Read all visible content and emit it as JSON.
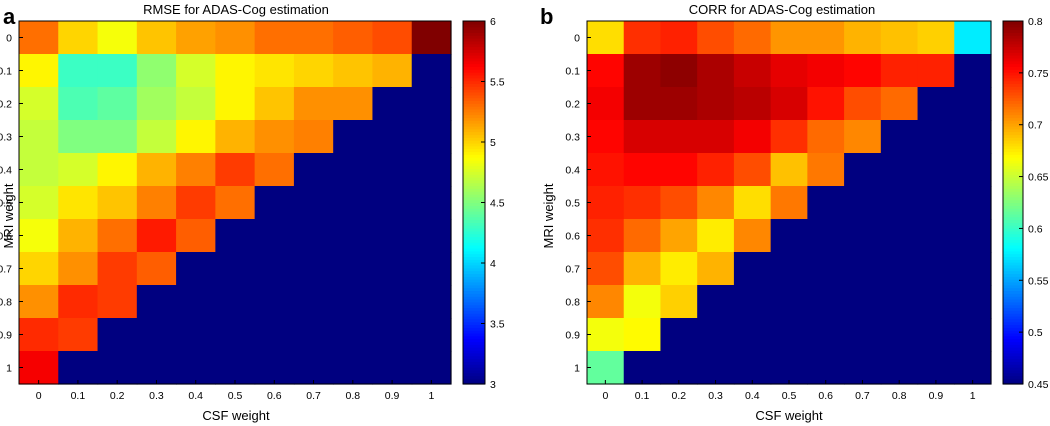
{
  "chart_data": [
    {
      "type": "heatmap",
      "panel": "a",
      "title": "RMSE for ADAS-Cog estimation",
      "xlabel": "CSF weight",
      "ylabel": "MRI weight",
      "x_ticks": [
        "0",
        "0.1",
        "0.2",
        "0.3",
        "0.4",
        "0.5",
        "0.6",
        "0.7",
        "0.8",
        "0.9",
        "1"
      ],
      "y_ticks": [
        "0",
        "0.1",
        "0.2",
        "0.3",
        "0.4",
        "0.5",
        "0.6",
        "0.7",
        "0.8",
        "0.9",
        "1"
      ],
      "clim": [
        3,
        6
      ],
      "colorbar_ticks": [
        "3",
        "3.5",
        "4",
        "4.5",
        "5",
        "5.5",
        "6"
      ],
      "masked_value": 3,
      "values": [
        [
          5.3,
          5.0,
          4.85,
          5.05,
          5.15,
          5.2,
          5.3,
          5.3,
          5.35,
          5.4,
          6.0
        ],
        [
          4.9,
          4.3,
          4.3,
          4.55,
          4.75,
          4.9,
          4.95,
          5.0,
          5.05,
          5.1
        ],
        [
          4.75,
          4.35,
          4.4,
          4.6,
          4.7,
          4.9,
          5.05,
          5.2,
          5.2
        ],
        [
          4.7,
          4.5,
          4.5,
          4.7,
          4.9,
          5.1,
          5.2,
          5.25
        ],
        [
          4.7,
          4.75,
          4.9,
          5.1,
          5.25,
          5.45,
          5.3
        ],
        [
          4.75,
          4.95,
          5.05,
          5.25,
          5.45,
          5.3
        ],
        [
          4.85,
          5.1,
          5.3,
          5.55,
          5.35
        ],
        [
          5.0,
          5.2,
          5.45,
          5.35
        ],
        [
          5.2,
          5.5,
          5.45
        ],
        [
          5.5,
          5.45
        ],
        [
          5.65
        ]
      ]
    },
    {
      "type": "heatmap",
      "panel": "b",
      "title": "CORR for ADAS-Cog estimation",
      "xlabel": "CSF weight",
      "ylabel": "MRI weight",
      "x_ticks": [
        "0",
        "0.1",
        "0.2",
        "0.3",
        "0.4",
        "0.5",
        "0.6",
        "0.7",
        "0.8",
        "0.9",
        "1"
      ],
      "y_ticks": [
        "0",
        "0.1",
        "0.2",
        "0.3",
        "0.4",
        "0.5",
        "0.6",
        "0.7",
        "0.8",
        "0.9",
        "1"
      ],
      "clim": [
        0.45,
        0.8
      ],
      "colorbar_ticks": [
        "0.45",
        "0.5",
        "0.55",
        "0.6",
        "0.65",
        "0.7",
        "0.75",
        "0.8"
      ],
      "masked_value": 0.45,
      "values": [
        [
          0.68,
          0.74,
          0.745,
          0.73,
          0.72,
          0.705,
          0.705,
          0.695,
          0.69,
          0.685,
          0.575
        ],
        [
          0.755,
          0.79,
          0.795,
          0.785,
          0.775,
          0.765,
          0.76,
          0.755,
          0.745,
          0.745
        ],
        [
          0.76,
          0.79,
          0.79,
          0.785,
          0.78,
          0.77,
          0.75,
          0.73,
          0.72
        ],
        [
          0.755,
          0.77,
          0.77,
          0.77,
          0.76,
          0.74,
          0.72,
          0.71
        ],
        [
          0.75,
          0.755,
          0.755,
          0.745,
          0.73,
          0.69,
          0.715
        ],
        [
          0.745,
          0.74,
          0.73,
          0.71,
          0.68,
          0.715
        ],
        [
          0.74,
          0.72,
          0.7,
          0.675,
          0.71
        ],
        [
          0.73,
          0.695,
          0.675,
          0.695
        ],
        [
          0.71,
          0.665,
          0.685
        ],
        [
          0.665,
          0.67
        ],
        [
          0.615
        ]
      ]
    }
  ]
}
